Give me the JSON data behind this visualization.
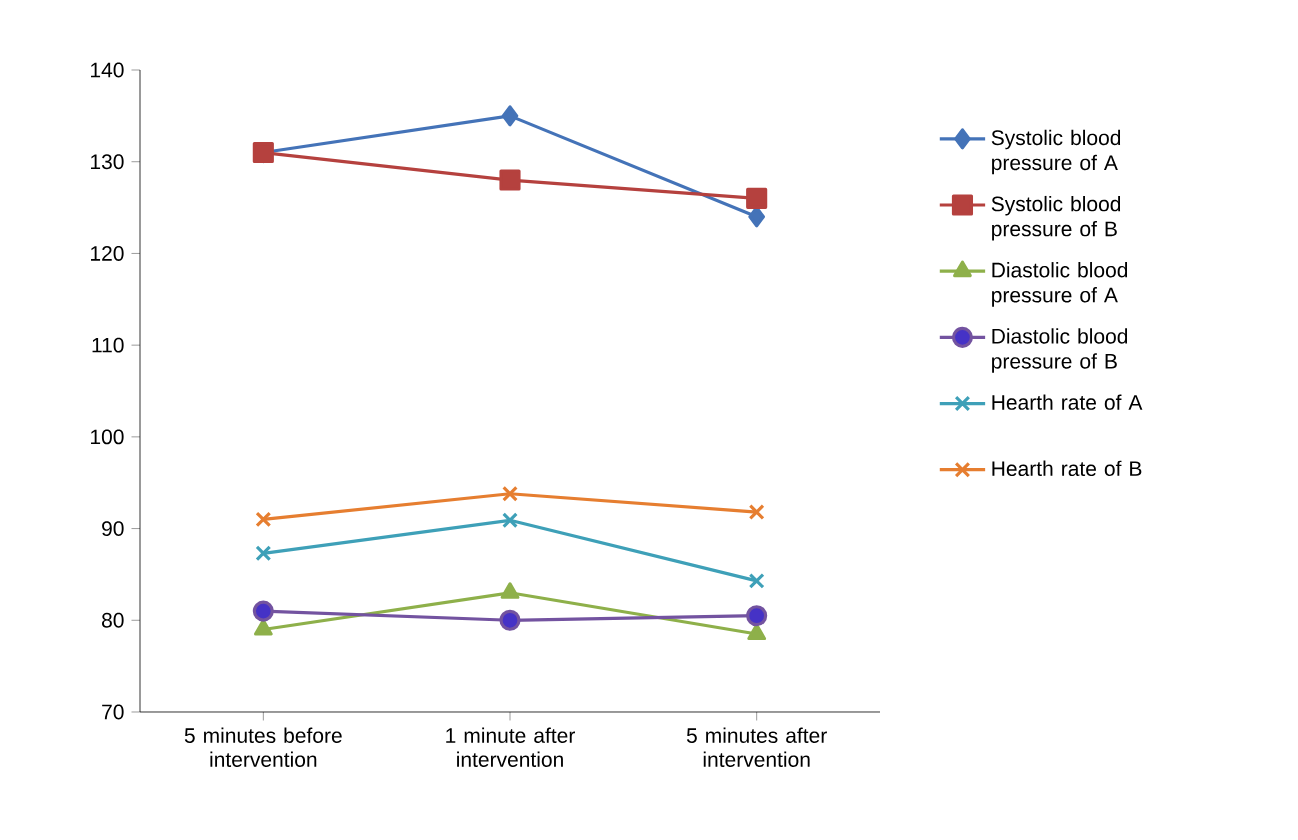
{
  "chart_data": {
    "type": "line",
    "categories": [
      "5 minutes before intervention",
      "1 minute after intervention",
      "5 minutes after intervention"
    ],
    "series": [
      {
        "name": "Systolic blood pressure of A",
        "color": "#4473b8",
        "marker": "diamond",
        "values": [
          131,
          135,
          124
        ]
      },
      {
        "name": "Systolic blood pressure of B",
        "color": "#b5413e",
        "marker": "square",
        "values": [
          131,
          128,
          126
        ]
      },
      {
        "name": "Diastolic blood pressure of A",
        "color": "#8eb04a",
        "marker": "triangle",
        "values": [
          79,
          83,
          78.5
        ]
      },
      {
        "name": "Diastolic blood pressure of B",
        "color": "#7353a0",
        "marker": "circle",
        "values": [
          81,
          80,
          80.5
        ]
      },
      {
        "name": "Hearth rate of A",
        "color": "#3ea0b8",
        "marker": "cross",
        "values": [
          87.3,
          90.9,
          84.3
        ]
      },
      {
        "name": "Hearth rate of B",
        "color": "#e67e30",
        "marker": "cross",
        "values": [
          91,
          93.8,
          91.8
        ]
      }
    ],
    "ylim": [
      70,
      140
    ],
    "yticks": [
      70,
      80,
      90,
      100,
      110,
      120,
      130,
      140
    ],
    "grid": false,
    "legend": "right",
    "line_style": "solid"
  }
}
